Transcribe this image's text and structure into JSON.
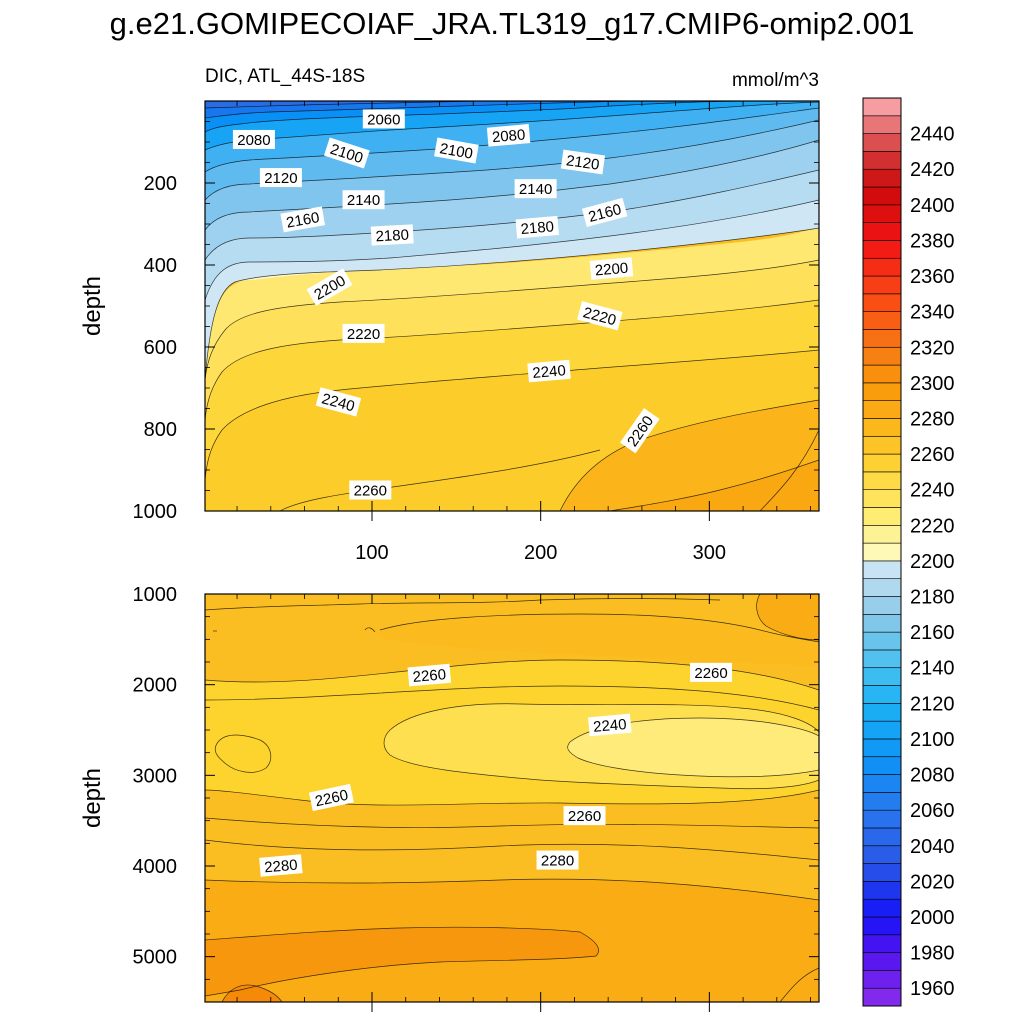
{
  "page": {
    "title": "g.e21.GOMIPECOIAF_JRA.TL319_g17.CMIP6-omip2.001"
  },
  "chart_data": {
    "type": "contour",
    "variable": "DIC",
    "region": "ATL_44S-18S",
    "left_string": "DIC, ATL_44S-18S",
    "units": "mmol/m^3",
    "colorbar": {
      "min": 1950,
      "max": 2460,
      "step": 10,
      "tick_labels": [
        "1960",
        "1980",
        "2000",
        "2020",
        "2040",
        "2060",
        "2080",
        "2100",
        "2120",
        "2140",
        "2160",
        "2180",
        "2200",
        "2220",
        "2240",
        "2260",
        "2280",
        "2300",
        "2320",
        "2340",
        "2360",
        "2380",
        "2400",
        "2420",
        "2440"
      ]
    },
    "panels": [
      {
        "id": "upper",
        "ylabel": "depth",
        "xlim": [
          1,
          365
        ],
        "ylim": [
          0,
          1000
        ],
        "y_reversed": true,
        "x_tick_labels": [
          "100",
          "200",
          "300"
        ],
        "y_tick_labels": [
          "200",
          "400",
          "600",
          "800",
          "1000"
        ],
        "contour_labels": [
          {
            "text": "2060",
            "x": 107,
            "y": 45,
            "angle": 0
          },
          {
            "text": "2080",
            "x": 30,
            "y": 95,
            "angle": 0
          },
          {
            "text": "2080",
            "x": 181,
            "y": 85,
            "angle": -5
          },
          {
            "text": "2100",
            "x": 85,
            "y": 128,
            "angle": 18
          },
          {
            "text": "2100",
            "x": 150,
            "y": 122,
            "angle": 10
          },
          {
            "text": "2120",
            "x": 46,
            "y": 188,
            "angle": 0
          },
          {
            "text": "2120",
            "x": 225,
            "y": 150,
            "angle": 8
          },
          {
            "text": "2140",
            "x": 95,
            "y": 242,
            "angle": 0
          },
          {
            "text": "2140",
            "x": 197,
            "y": 215,
            "angle": 0
          },
          {
            "text": "2160",
            "x": 59,
            "y": 290,
            "angle": -10
          },
          {
            "text": "2160",
            "x": 238,
            "y": 273,
            "angle": -15
          },
          {
            "text": "2180",
            "x": 112,
            "y": 328,
            "angle": -3
          },
          {
            "text": "2180",
            "x": 198,
            "y": 309,
            "angle": -5
          },
          {
            "text": "2200",
            "x": 75,
            "y": 455,
            "angle": -30
          },
          {
            "text": "2200",
            "x": 242,
            "y": 410,
            "angle": -5
          },
          {
            "text": "2220",
            "x": 95,
            "y": 568,
            "angle": 0
          },
          {
            "text": "2220",
            "x": 235,
            "y": 525,
            "angle": 15
          },
          {
            "text": "2240",
            "x": 80,
            "y": 735,
            "angle": 15
          },
          {
            "text": "2240",
            "x": 205,
            "y": 660,
            "angle": -5
          },
          {
            "text": "2260",
            "x": 99,
            "y": 950,
            "angle": 0
          },
          {
            "text": "2260",
            "x": 259,
            "y": 805,
            "angle": -55
          }
        ]
      },
      {
        "id": "lower",
        "ylabel": "depth",
        "xlim": [
          1,
          365
        ],
        "ylim": [
          1000,
          5500
        ],
        "y_reversed": true,
        "y_tick_labels": [
          "1000",
          "2000",
          "3000",
          "4000",
          "5000"
        ],
        "contour_labels": [
          {
            "text": "2260",
            "x": 134,
            "y": 1900,
            "angle": -5
          },
          {
            "text": "2260",
            "x": 301,
            "y": 1870,
            "angle": 0
          },
          {
            "text": "2240",
            "x": 241,
            "y": 2450,
            "angle": -5
          },
          {
            "text": "2260",
            "x": 76,
            "y": 3250,
            "angle": -12
          },
          {
            "text": "2260",
            "x": 226,
            "y": 3450,
            "angle": 0
          },
          {
            "text": "2280",
            "x": 46,
            "y": 4000,
            "angle": -5
          },
          {
            "text": "2280",
            "x": 210,
            "y": 3940,
            "angle": 0
          }
        ]
      }
    ]
  }
}
